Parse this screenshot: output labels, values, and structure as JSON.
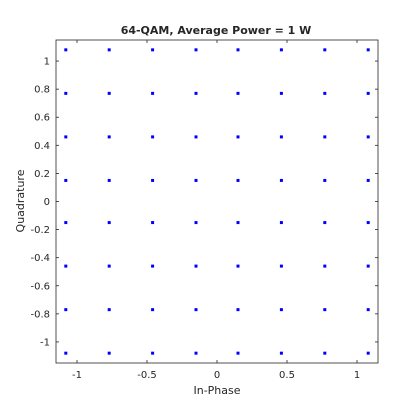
{
  "chart_data": {
    "type": "scatter",
    "title": "64-QAM, Average Power = 1 W",
    "xlabel": "In-Phase",
    "ylabel": "Quadrature",
    "xlim": [
      -1.15,
      1.15
    ],
    "ylim": [
      -1.15,
      1.15
    ],
    "xticks": [
      -1,
      -0.5,
      0,
      0.5,
      1
    ],
    "yticks": [
      -1,
      -0.8,
      -0.6,
      -0.4,
      -0.2,
      0,
      0.2,
      0.4,
      0.6,
      0.8,
      1
    ],
    "xtick_labels": [
      "-1",
      "-0.5",
      "0",
      "0.5",
      "1"
    ],
    "ytick_labels": [
      "-1",
      "-0.8",
      "-0.6",
      "-0.4",
      "-0.2",
      "0",
      "0.2",
      "0.4",
      "0.6",
      "0.8",
      "1"
    ],
    "grid": false,
    "marker_color": "#0000ff",
    "constellation_levels": [
      -1.08,
      -0.77,
      -0.46,
      -0.15,
      0.15,
      0.46,
      0.77,
      1.08
    ]
  }
}
